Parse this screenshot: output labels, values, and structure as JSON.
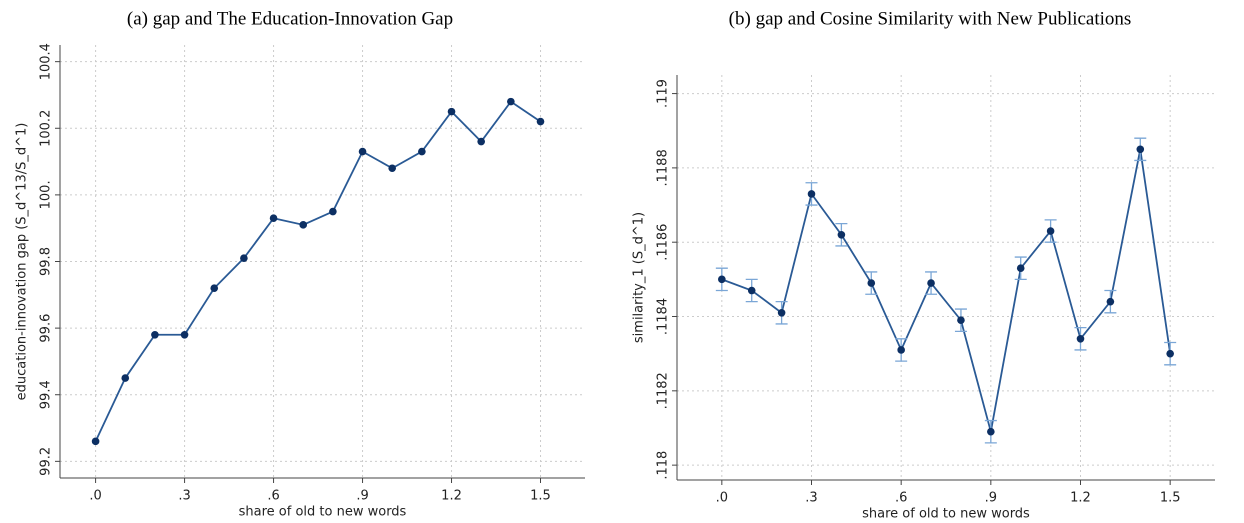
{
  "chart_data": [
    {
      "type": "line",
      "title": "(a) gap and The Education-Innovation Gap",
      "xlabel": "share of old to new words",
      "ylabel": "education-innovation gap (S_d^13/S_d^1)",
      "x": [
        0,
        0.1,
        0.2,
        0.3,
        0.4,
        0.5,
        0.6,
        0.7,
        0.8,
        0.9,
        1.0,
        1.1,
        1.2,
        1.3,
        1.4,
        1.5
      ],
      "series": [
        {
          "color": "#2a5a95",
          "marker_color": "#0c2f63",
          "values": [
            99.26,
            99.45,
            99.58,
            99.58,
            99.72,
            99.81,
            99.93,
            99.91,
            99.95,
            100.13,
            100.08,
            100.13,
            100.25,
            100.16,
            100.28,
            100.22
          ]
        }
      ],
      "xlim": [
        -0.12,
        1.65
      ],
      "ylim": [
        99.15,
        100.45
      ],
      "xticks": [
        {
          "value": 0,
          "label": ".0"
        },
        {
          "value": 0.3,
          "label": ".3"
        },
        {
          "value": 0.6,
          "label": ".6"
        },
        {
          "value": 0.9,
          "label": ".9"
        },
        {
          "value": 1.2,
          "label": "1.2"
        },
        {
          "value": 1.5,
          "label": "1.5"
        }
      ],
      "yticks": [
        99.2,
        99.4,
        99.6,
        99.8,
        {
          "value": 100,
          "label": "100."
        },
        100.2,
        100.4
      ],
      "grid": true
    },
    {
      "type": "line",
      "title": "(b) gap and Cosine Similarity with New Publications",
      "xlabel": "share of old to new words",
      "ylabel": "similarity_1 (S_d^1)",
      "x": [
        0,
        0.1,
        0.2,
        0.3,
        0.4,
        0.5,
        0.6,
        0.7,
        0.8,
        0.9,
        1.0,
        1.1,
        1.2,
        1.3,
        1.4,
        1.5
      ],
      "series": [
        {
          "color": "#2a5a95",
          "marker_color": "#0c2f63",
          "values": [
            0.1185,
            0.11847,
            0.11841,
            0.11873,
            0.11862,
            0.11849,
            0.11831,
            0.11849,
            0.11839,
            0.11809,
            0.11853,
            0.11863,
            0.11834,
            0.11844,
            0.11885,
            0.1183
          ],
          "errors": [
            3e-05,
            3e-05,
            3e-05,
            3e-05,
            3e-05,
            3e-05,
            3e-05,
            3e-05,
            3e-05,
            3e-05,
            3e-05,
            3e-05,
            3e-05,
            3e-05,
            3e-05,
            3e-05
          ]
        }
      ],
      "xlim": [
        -0.15,
        1.65
      ],
      "ylim": [
        0.11796,
        0.11905
      ],
      "xticks": [
        {
          "value": 0,
          "label": ".0"
        },
        {
          "value": 0.3,
          "label": ".3"
        },
        {
          "value": 0.6,
          "label": ".6"
        },
        {
          "value": 0.9,
          "label": ".9"
        },
        {
          "value": 1.2,
          "label": "1.2"
        },
        {
          "value": 1.5,
          "label": "1.5"
        }
      ],
      "yticks": [
        {
          "value": 0.118,
          "label": ".118"
        },
        {
          "value": 0.1182,
          "label": ".1182"
        },
        {
          "value": 0.1184,
          "label": ".1184"
        },
        {
          "value": 0.1186,
          "label": ".1186"
        },
        {
          "value": 0.1188,
          "label": ".1188"
        },
        {
          "value": 0.119,
          "label": ".119"
        }
      ],
      "grid": true
    }
  ]
}
